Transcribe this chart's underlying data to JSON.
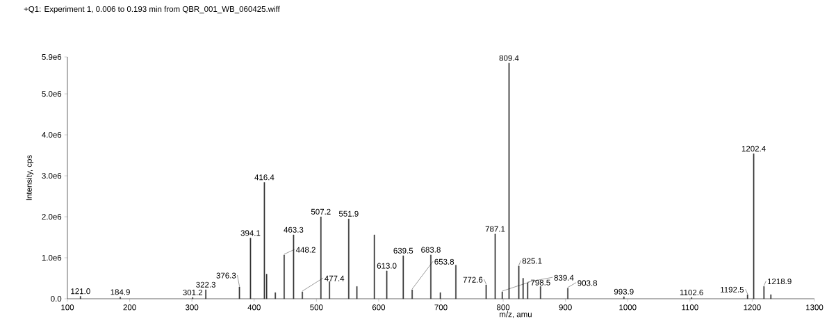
{
  "chart_data": {
    "type": "bar",
    "title": "+Q1: Experiment 1, 0.006 to 0.193 min from QBR_001_WB_060425.wiff",
    "xlabel": "m/z, amu",
    "ylabel": "Intensity, cps",
    "x": [
      121.0,
      184.9,
      301.2,
      322.3,
      376.3,
      394.1,
      416.4,
      420,
      434,
      448.2,
      463.3,
      477.4,
      507.2,
      521,
      551.9,
      565,
      593,
      613.0,
      639.5,
      653.8,
      683.8,
      699,
      724,
      772.6,
      787.1,
      798.5,
      809.4,
      825.1,
      832,
      839.4,
      860,
      903.8,
      993.9,
      1102.6,
      1192.5,
      1202.4,
      1218.9,
      1230
    ],
    "values": [
      60000,
      40000,
      30000,
      220000,
      290000,
      1480000,
      2840000,
      600000,
      150000,
      1070000,
      1560000,
      170000,
      2000000,
      420000,
      1950000,
      300000,
      1560000,
      680000,
      1050000,
      220000,
      1070000,
      150000,
      820000,
      340000,
      1580000,
      170000,
      5750000,
      800000,
      500000,
      390000,
      300000,
      260000,
      50000,
      30000,
      100000,
      3540000,
      300000,
      100000
    ],
    "color": "#333333",
    "xlim": [
      100,
      1300
    ],
    "ylim": [
      0,
      5900000
    ],
    "xticks": [
      100,
      200,
      300,
      400,
      500,
      600,
      700,
      800,
      900,
      1000,
      1100,
      1200,
      1300
    ],
    "yticks": [
      {
        "value": 0,
        "label": "0.0"
      },
      {
        "value": 1000000,
        "label": "1.0e6"
      },
      {
        "value": 2000000,
        "label": "2.0e6"
      },
      {
        "value": 3000000,
        "label": "3.0e6"
      },
      {
        "value": 4000000,
        "label": "4.0e6"
      },
      {
        "value": 5000000,
        "label": "5.0e6"
      },
      {
        "value": 5900000,
        "label": "5.9e6"
      }
    ],
    "annotations": [
      {
        "text": "121.0",
        "x": 121.0,
        "y": 60000
      },
      {
        "text": "184.9",
        "x": 184.9,
        "y": 40000
      },
      {
        "text": "301.2",
        "x": 301.2,
        "y": 30000
      },
      {
        "text": "322.3",
        "x": 322.3,
        "y": 220000
      },
      {
        "text": "376.3",
        "x": 376.3,
        "y": 290000
      },
      {
        "text": "394.1",
        "x": 394.1,
        "y": 1480000
      },
      {
        "text": "416.4",
        "x": 416.4,
        "y": 2840000
      },
      {
        "text": "448.2",
        "x": 448.2,
        "y": 1070000
      },
      {
        "text": "463.3",
        "x": 463.3,
        "y": 1560000
      },
      {
        "text": "477.4",
        "x": 477.4,
        "y": 170000
      },
      {
        "text": "507.2",
        "x": 507.2,
        "y": 2000000
      },
      {
        "text": "551.9",
        "x": 551.9,
        "y": 1950000
      },
      {
        "text": "613.0",
        "x": 613.0,
        "y": 680000
      },
      {
        "text": "639.5",
        "x": 639.5,
        "y": 1050000
      },
      {
        "text": "653.8",
        "x": 653.8,
        "y": 220000
      },
      {
        "text": "683.8",
        "x": 683.8,
        "y": 1070000
      },
      {
        "text": "772.6",
        "x": 772.6,
        "y": 340000
      },
      {
        "text": "787.1",
        "x": 787.1,
        "y": 1580000
      },
      {
        "text": "798.5",
        "x": 798.5,
        "y": 170000
      },
      {
        "text": "809.4",
        "x": 809.4,
        "y": 5750000
      },
      {
        "text": "825.1",
        "x": 825.1,
        "y": 800000
      },
      {
        "text": "839.4",
        "x": 839.4,
        "y": 390000
      },
      {
        "text": "903.8",
        "x": 903.8,
        "y": 260000
      },
      {
        "text": "993.9",
        "x": 993.9,
        "y": 50000
      },
      {
        "text": "1102.6",
        "x": 1102.6,
        "y": 30000
      },
      {
        "text": "1192.5",
        "x": 1192.5,
        "y": 100000
      },
      {
        "text": "1202.4",
        "x": 1202.4,
        "y": 3540000
      },
      {
        "text": "1218.9",
        "x": 1218.9,
        "y": 300000
      }
    ]
  }
}
